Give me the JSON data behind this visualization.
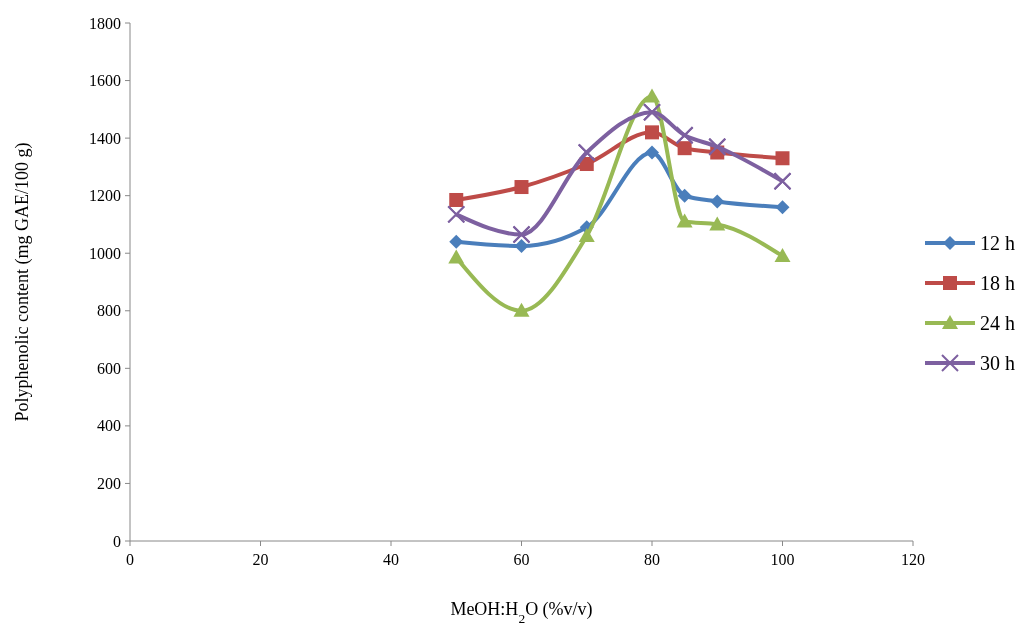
{
  "chart_data": {
    "type": "line",
    "xlabel": "MeOH:H$_{2}$O  (%v/v)",
    "ylabel": "Polyphenolic content (mg GAE/100 g)",
    "x": [
      50,
      60,
      70,
      80,
      85,
      90,
      100
    ],
    "series": [
      {
        "name": "12 h",
        "color": "#4a7ebb",
        "marker": "diamond",
        "values": [
          1040,
          1025,
          1090,
          1350,
          1200,
          1180,
          1160
        ]
      },
      {
        "name": "18 h",
        "color": "#be4b48",
        "marker": "square",
        "values": [
          1185,
          1230,
          1310,
          1420,
          1365,
          1350,
          1330
        ]
      },
      {
        "name": "24 h",
        "color": "#98b954",
        "marker": "triangle",
        "values": [
          985,
          800,
          1060,
          1545,
          1110,
          1100,
          990
        ]
      },
      {
        "name": "30 h",
        "color": "#7d60a0",
        "marker": "cross",
        "values": [
          1135,
          1065,
          1350,
          1490,
          1410,
          1370,
          1250
        ]
      }
    ],
    "xlim": [
      0,
      120
    ],
    "xticks": [
      0,
      20,
      40,
      60,
      80,
      100,
      120
    ],
    "ylim": [
      0,
      1800
    ],
    "yticks": [
      0,
      200,
      400,
      600,
      800,
      1000,
      1200,
      1400,
      1600,
      1800
    ],
    "grid": false,
    "legend": "right",
    "line_style": "solid"
  }
}
